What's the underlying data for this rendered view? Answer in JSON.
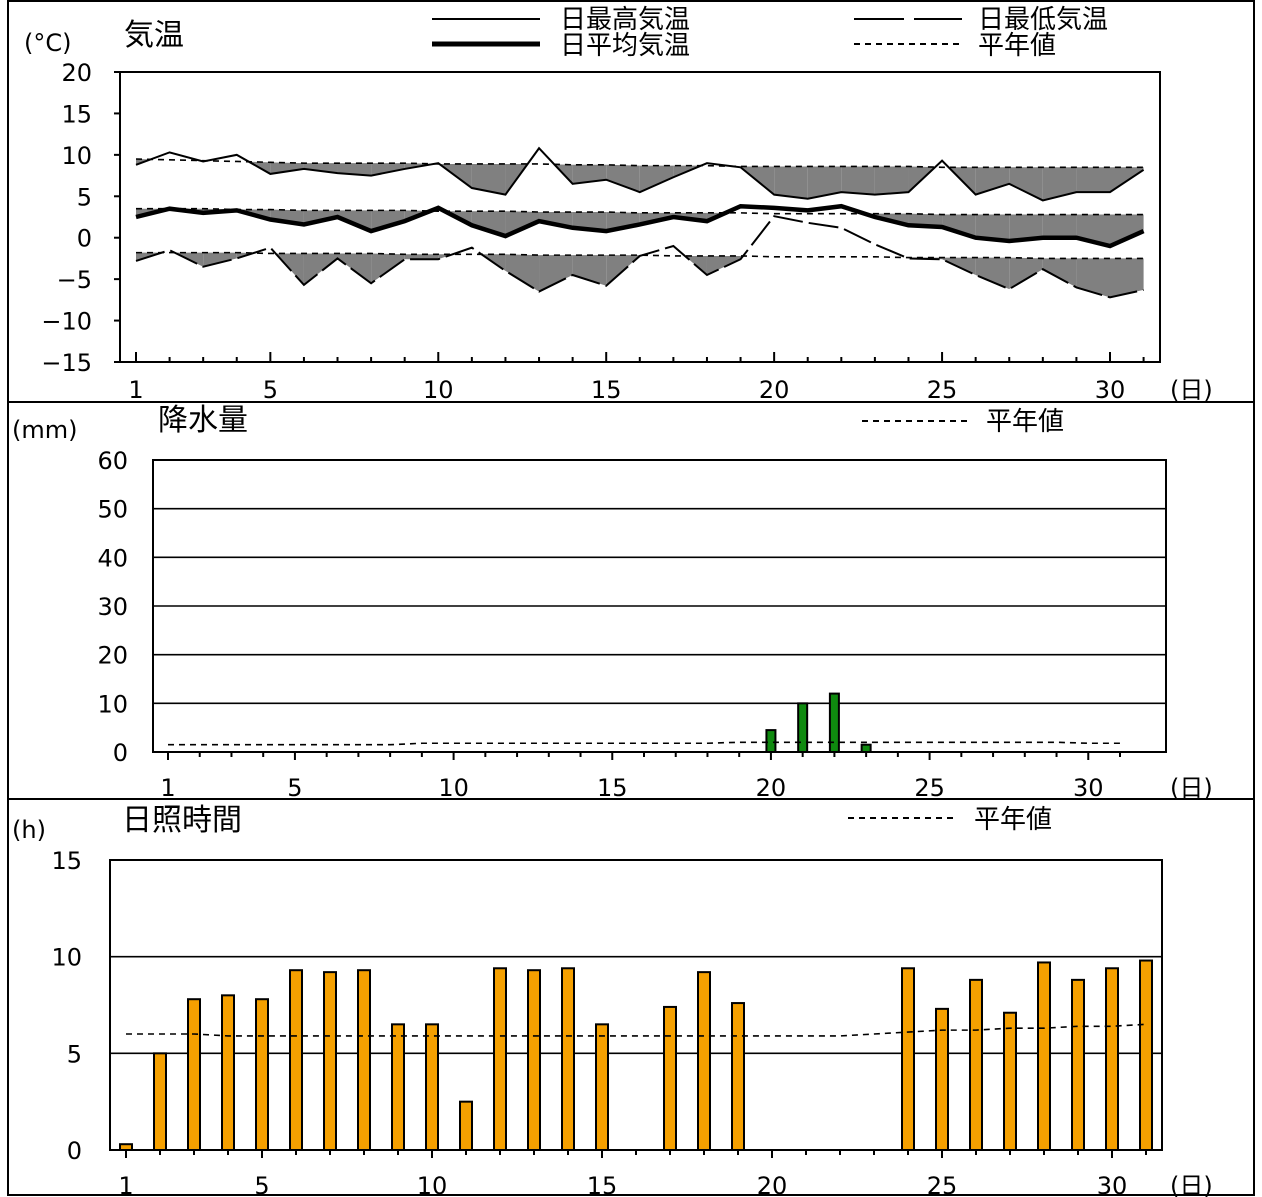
{
  "chart_data": [
    {
      "type": "line",
      "title": "気温",
      "ylabel": "(°C)",
      "xlabel": "(日)",
      "ylim": [
        -15,
        20
      ],
      "xlim": [
        1,
        31
      ],
      "yticks": [
        20,
        15,
        10,
        5,
        0,
        -5,
        -10,
        -15
      ],
      "ytick_labels": [
        "20",
        "15",
        "10",
        "5",
        "0",
        "−5",
        "−10",
        "−15"
      ],
      "xticks": [
        1,
        5,
        10,
        15,
        20,
        25,
        30
      ],
      "legend": [
        "日最高気温",
        "日最低気温",
        "日平均気温",
        "平年値"
      ],
      "x": [
        1,
        2,
        3,
        4,
        5,
        6,
        7,
        8,
        9,
        10,
        11,
        12,
        13,
        14,
        15,
        16,
        17,
        18,
        19,
        20,
        21,
        22,
        23,
        24,
        25,
        26,
        27,
        28,
        29,
        30,
        31
      ],
      "series": [
        {
          "name": "日最高気温",
          "values": [
            8.8,
            10.3,
            9.2,
            10.0,
            7.7,
            8.3,
            7.8,
            7.5,
            8.3,
            9.0,
            6.0,
            5.2,
            10.8,
            6.5,
            7.0,
            5.5,
            7.3,
            9.0,
            8.5,
            5.2,
            4.7,
            5.5,
            5.2,
            5.5,
            9.3,
            5.2,
            6.5,
            4.5,
            5.5,
            5.5,
            8.2
          ]
        },
        {
          "name": "日最低気温",
          "values": [
            -2.8,
            -1.5,
            -3.5,
            -2.5,
            -1.2,
            -5.7,
            -2.5,
            -5.5,
            -2.6,
            -2.6,
            -1.2,
            -4.0,
            -6.5,
            -4.5,
            -5.8,
            -2.2,
            -1.0,
            -4.5,
            -2.6,
            2.6,
            1.8,
            1.2,
            -0.8,
            -2.5,
            -2.6,
            -4.5,
            -6.2,
            -3.8,
            -6.0,
            -7.2,
            -6.3
          ]
        },
        {
          "name": "日平均気温",
          "values": [
            2.5,
            3.5,
            3.0,
            3.3,
            2.2,
            1.6,
            2.5,
            0.8,
            2.0,
            3.6,
            1.5,
            0.2,
            2.0,
            1.2,
            0.8,
            1.6,
            2.5,
            2.0,
            3.8,
            3.6,
            3.3,
            3.8,
            2.5,
            1.5,
            1.3,
            0.0,
            -0.4,
            0.0,
            0.0,
            -1.0,
            0.8
          ]
        },
        {
          "name": "平年値",
          "values": [
            9.5,
            9.4,
            9.3,
            9.2,
            9.1,
            9.0,
            9.0,
            9.0,
            9.0,
            8.9,
            8.9,
            8.9,
            8.9,
            8.8,
            8.8,
            8.7,
            8.7,
            8.7,
            8.6,
            8.6,
            8.6,
            8.6,
            8.6,
            8.6,
            8.5,
            8.5,
            8.5,
            8.5,
            8.5,
            8.5,
            8.5
          ]
        },
        {
          "name": "平年値",
          "values": [
            3.5,
            3.5,
            3.5,
            3.4,
            3.4,
            3.3,
            3.3,
            3.3,
            3.3,
            3.2,
            3.2,
            3.2,
            3.1,
            3.1,
            3.1,
            3.0,
            3.0,
            3.0,
            3.0,
            2.9,
            2.9,
            2.9,
            2.9,
            2.9,
            2.8,
            2.8,
            2.8,
            2.8,
            2.8,
            2.8,
            2.8
          ]
        },
        {
          "name": "平年値",
          "values": [
            -1.8,
            -1.8,
            -1.8,
            -1.8,
            -1.9,
            -1.9,
            -1.9,
            -1.9,
            -2.0,
            -2.0,
            -2.0,
            -2.0,
            -2.1,
            -2.1,
            -2.1,
            -2.1,
            -2.2,
            -2.2,
            -2.2,
            -2.3,
            -2.3,
            -2.3,
            -2.3,
            -2.4,
            -2.4,
            -2.4,
            -2.4,
            -2.5,
            -2.5,
            -2.5,
            -2.5
          ]
        }
      ],
      "colors": {
        "line": "#000000",
        "fill": "#808080"
      }
    },
    {
      "type": "bar",
      "title": "降水量",
      "ylabel": "(mm)",
      "xlabel": "(日)",
      "ylim": [
        0,
        60
      ],
      "xlim": [
        1,
        31
      ],
      "yticks": [
        60,
        50,
        40,
        30,
        20,
        10,
        0
      ],
      "xticks": [
        1,
        5,
        10,
        15,
        20,
        25,
        30
      ],
      "legend": [
        "平年値"
      ],
      "x": [
        1,
        2,
        3,
        4,
        5,
        6,
        7,
        8,
        9,
        10,
        11,
        12,
        13,
        14,
        15,
        16,
        17,
        18,
        19,
        20,
        21,
        22,
        23,
        24,
        25,
        26,
        27,
        28,
        29,
        30,
        31
      ],
      "series": [
        {
          "name": "降水量",
          "values": [
            0,
            0,
            0,
            0,
            0,
            0,
            0,
            0,
            0,
            0,
            0,
            0,
            0,
            0,
            0,
            0,
            0,
            0,
            0,
            4.5,
            10.0,
            12.0,
            1.5,
            0,
            0,
            0,
            0,
            0,
            0,
            0,
            0
          ]
        },
        {
          "name": "平年値",
          "values": [
            1.5,
            1.5,
            1.5,
            1.5,
            1.5,
            1.5,
            1.5,
            1.5,
            1.8,
            1.8,
            1.8,
            1.8,
            1.8,
            1.8,
            1.8,
            1.8,
            1.8,
            1.8,
            2.0,
            2.0,
            2.0,
            2.0,
            2.0,
            2.0,
            2.0,
            2.0,
            2.0,
            2.0,
            2.0,
            1.8,
            1.8
          ]
        }
      ],
      "colors": {
        "bar": "#0f8a0f",
        "line": "#000000"
      }
    },
    {
      "type": "bar",
      "title": "日照時間",
      "ylabel": "(h)",
      "xlabel": "(日)",
      "ylim": [
        0,
        15
      ],
      "xlim": [
        1,
        31
      ],
      "yticks": [
        15,
        10,
        5,
        0
      ],
      "xticks": [
        1,
        5,
        10,
        15,
        20,
        25,
        30
      ],
      "legend": [
        "平年値"
      ],
      "x": [
        1,
        2,
        3,
        4,
        5,
        6,
        7,
        8,
        9,
        10,
        11,
        12,
        13,
        14,
        15,
        16,
        17,
        18,
        19,
        20,
        21,
        22,
        23,
        24,
        25,
        26,
        27,
        28,
        29,
        30,
        31
      ],
      "series": [
        {
          "name": "日照時間",
          "values": [
            0.3,
            5.0,
            7.8,
            8.0,
            7.8,
            9.3,
            9.2,
            9.3,
            6.5,
            6.5,
            2.5,
            9.4,
            9.3,
            9.4,
            6.5,
            0,
            7.4,
            9.2,
            7.6,
            0,
            0,
            0,
            0,
            9.4,
            7.3,
            8.8,
            7.1,
            9.7,
            8.8,
            9.4,
            9.8
          ]
        },
        {
          "name": "平年値",
          "values": [
            6.0,
            6.0,
            6.0,
            5.9,
            5.9,
            5.9,
            5.9,
            5.9,
            5.9,
            5.9,
            5.9,
            5.9,
            5.9,
            5.9,
            5.9,
            5.9,
            5.9,
            5.9,
            5.9,
            5.9,
            5.9,
            5.9,
            6.0,
            6.1,
            6.2,
            6.2,
            6.3,
            6.3,
            6.4,
            6.4,
            6.5
          ]
        }
      ],
      "colors": {
        "bar": "#f5a000",
        "line": "#000000"
      }
    }
  ]
}
